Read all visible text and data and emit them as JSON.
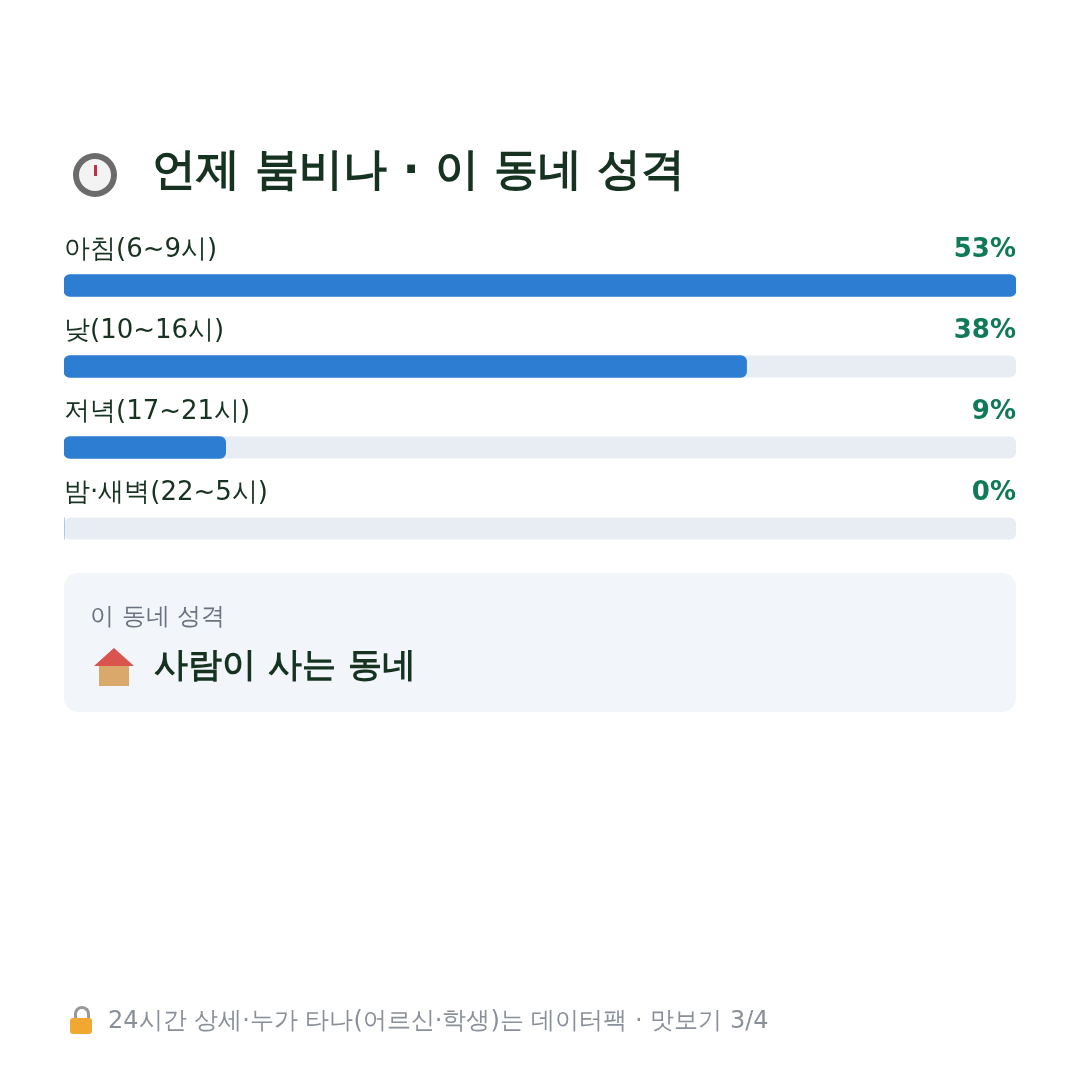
{
  "chart_data": {
    "type": "bar",
    "orientation": "horizontal",
    "title": "언제 붐비나 · 이 동네 성격",
    "categories": [
      "아침(6~9시)",
      "낮(10~16시)",
      "저녁(17~21시)",
      "밤·새벽(22~5시)"
    ],
    "values": [
      53,
      38,
      9,
      0
    ],
    "color": "#2d7dd2",
    "xlim": [
      0,
      53
    ],
    "value_labels": [
      "53%",
      "38%",
      "9%",
      "0%"
    ],
    "annotations": [
      "이 동네 성격",
      "사람이 사는 동네",
      "24시간 상세·누가 타나(어르신·학생)는 데이터팩 · 맛보기 3/4"
    ],
    "legend": false
  }
}
